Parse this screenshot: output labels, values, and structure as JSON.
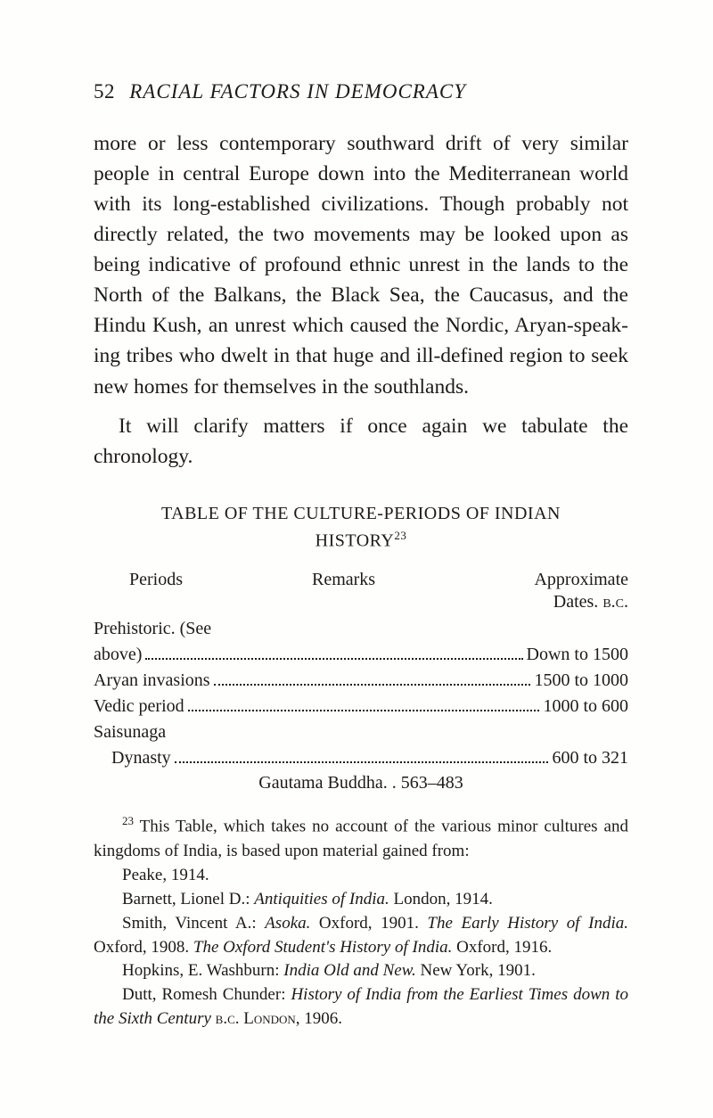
{
  "header": {
    "page_number": "52",
    "running_title": "RACIAL FACTORS IN DEMOCRACY"
  },
  "paragraphs": {
    "p1": "more or less contemporary southward drift of very similar people in central Europe down into the Mediterranean world with its long-established civilizations. Though probably not directly re­lated, the two movements may be looked upon as being indicative of profound ethnic unrest in the lands to the North of the Balkans, the Black Sea, the Caucasus, and the Hindu Kush, an unrest which caused the Nordic, Aryan-speak­ing tribes who dwelt in that huge and ill-defined region to seek new homes for themselves in the southlands.",
    "p2": "It will clarify matters if once again we tabulate the chronology."
  },
  "table": {
    "title_line1": "TABLE OF THE CULTURE-PERIODS OF INDIAN",
    "title_line2": "HISTORY",
    "title_sup": "23",
    "col1": "Periods",
    "col2": "Remarks",
    "col3": "Approximate",
    "dates_label": "Dates.",
    "bc": "b.c.",
    "rows": {
      "prehistoric_lead": "Prehistoric.  (See",
      "above_label": "above)",
      "above_val": "Down to 1500",
      "aryan_label": "Aryan invasions",
      "aryan_val": "1500 to 1000",
      "vedic_label": "Vedic period",
      "vedic_val": "1000 to 600",
      "saisunaga_lead": "Saisunaga",
      "dynasty_label": "Dynasty",
      "dynasty_val": "600 to 321"
    },
    "buddha": "Gautama Buddha. . 563–483"
  },
  "footnote": {
    "sup": "23",
    "lead": " This Table, which takes no account of the various minor cultures and kingdoms of India, is based upon material gained from:",
    "l1": "Peake, 1914.",
    "l2a": "Barnett, Lionel D.: ",
    "l2i": "Antiquities of India.",
    "l2b": "  London, 1914.",
    "l3a": "Smith, Vincent A.: ",
    "l3i1": "Asoka.",
    "l3b": "  Oxford, 1901.  ",
    "l3i2": "The Early History of India.",
    "l3c": "  Oxford, 1908.  ",
    "l3i3": "The Oxford Student's History of India.",
    "l3d": "  Oxford, 1916.",
    "l4a": "Hopkins, E. Washburn: ",
    "l4i": "India Old and New.",
    "l4b": "  New York, 1901.",
    "l5a": "Dutt, Romesh Chunder: ",
    "l5i": "History of India from the Earliest Times down to the Sixth Century",
    "l5b": " b.c.  London, 1906."
  }
}
